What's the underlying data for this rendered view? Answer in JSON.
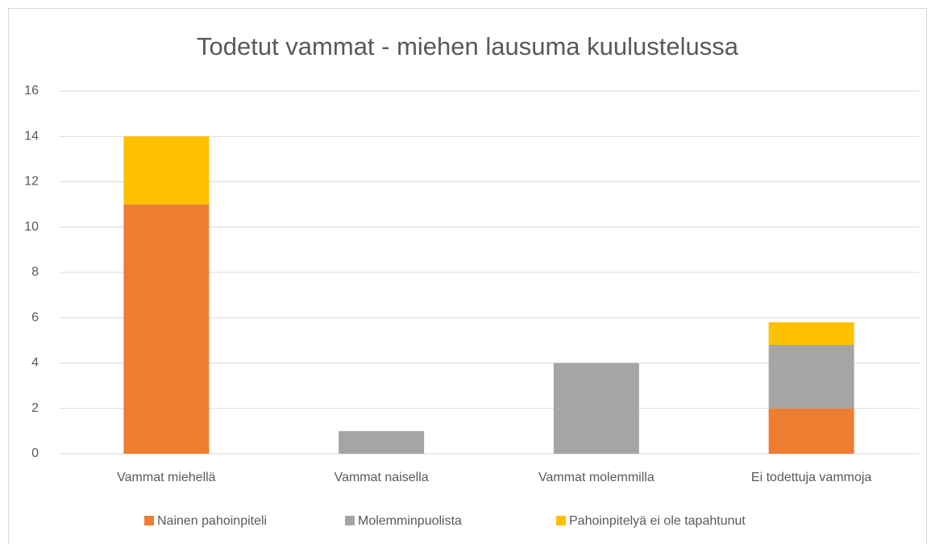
{
  "chart_data": {
    "type": "bar",
    "stacked": true,
    "title": "Todetut vammat - miehen lausuma kuulustelussa",
    "categories": [
      "Vammat miehellä",
      "Vammat naisella",
      "Vammat molemmilla",
      "Ei todettuja vammoja"
    ],
    "series": [
      {
        "name": "Nainen pahoinpiteli",
        "color": "#ed7d31",
        "values": [
          11,
          0,
          0,
          2
        ]
      },
      {
        "name": "Molemminpuolista",
        "color": "#a5a5a5",
        "values": [
          0,
          1,
          4,
          2.8
        ]
      },
      {
        "name": "Pahoinpitelyä ei ole tapahtunut",
        "color": "#ffc000",
        "values": [
          3,
          0,
          0,
          1
        ]
      }
    ],
    "ylim": [
      0,
      16
    ],
    "yticks": [
      0,
      2,
      4,
      6,
      8,
      10,
      12,
      14,
      16
    ],
    "grid": true,
    "legend": "bottom"
  }
}
